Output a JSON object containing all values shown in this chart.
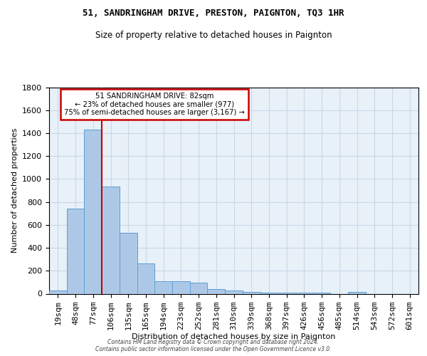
{
  "title1": "51, SANDRINGHAM DRIVE, PRESTON, PAIGNTON, TQ3 1HR",
  "title2": "Size of property relative to detached houses in Paignton",
  "xlabel": "Distribution of detached houses by size in Paignton",
  "ylabel": "Number of detached properties",
  "bin_labels": [
    "19sqm",
    "48sqm",
    "77sqm",
    "106sqm",
    "135sqm",
    "165sqm",
    "194sqm",
    "223sqm",
    "252sqm",
    "281sqm",
    "310sqm",
    "339sqm",
    "368sqm",
    "397sqm",
    "426sqm",
    "456sqm",
    "485sqm",
    "514sqm",
    "543sqm",
    "572sqm",
    "601sqm"
  ],
  "bar_values": [
    25,
    740,
    1430,
    935,
    530,
    265,
    110,
    110,
    95,
    40,
    25,
    15,
    10,
    10,
    10,
    10,
    0,
    15,
    0,
    0,
    0
  ],
  "bar_color": "#adc8e6",
  "bar_edge_color": "#5a9fd4",
  "annotation_text": "51 SANDRINGHAM DRIVE: 82sqm\n← 23% of detached houses are smaller (977)\n75% of semi-detached houses are larger (3,167) →",
  "annotation_box_color": "#ffffff",
  "annotation_box_edge": "#cc0000",
  "vline_color": "#cc0000",
  "grid_color": "#c8d8e8",
  "background_color": "#e8f0f8",
  "footer": "Contains HM Land Registry data © Crown copyright and database right 2024.\nContains public sector information licensed under the Open Government Licence v3.0.",
  "ylim": [
    0,
    1800
  ],
  "yticks": [
    0,
    200,
    400,
    600,
    800,
    1000,
    1200,
    1400,
    1600,
    1800
  ]
}
